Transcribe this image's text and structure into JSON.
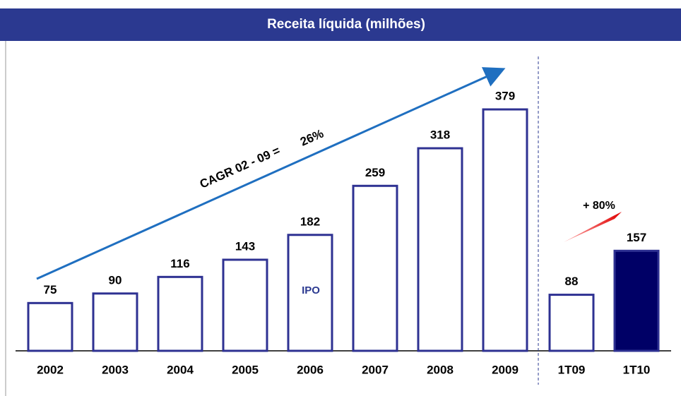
{
  "chart_data": {
    "type": "bar",
    "title": "Receita líquida (milhões)",
    "categories": [
      "2002",
      "2003",
      "2004",
      "2005",
      "2006",
      "2007",
      "2008",
      "2009",
      "1T09",
      "1T10"
    ],
    "values": [
      75,
      90,
      116,
      143,
      182,
      259,
      318,
      379,
      88,
      157
    ],
    "colors": [
      "#ffffff",
      "#ffffff",
      "#ffffff",
      "#ffffff",
      "#ffffff",
      "#ffffff",
      "#ffffff",
      "#ffffff",
      "#ffffff",
      "#000066"
    ],
    "edge_color": "#2e3192",
    "annotations": {
      "cagr": "CAGR 02 - 09 =",
      "cagr_value": "26%",
      "ipo": "IPO",
      "growth": "+ 80%"
    }
  }
}
